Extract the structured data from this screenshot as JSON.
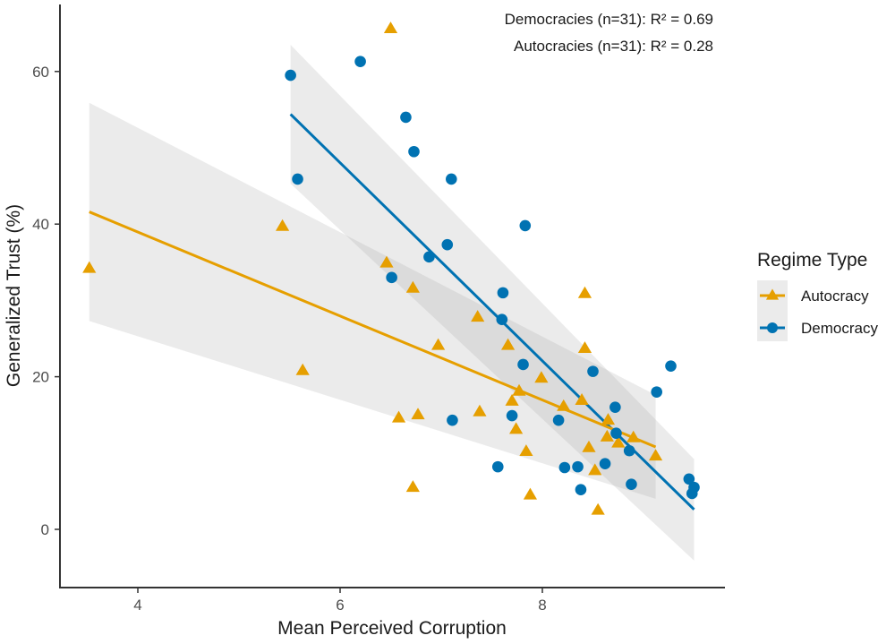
{
  "chart_data": {
    "type": "scatter",
    "title": "",
    "xlabel": "Mean Perceived Corruption",
    "ylabel": "Generalized Trust (%)",
    "xlim": [
      3.4,
      9.8
    ],
    "ylim": [
      -5,
      68
    ],
    "x_ticks": [
      4,
      6,
      8
    ],
    "x_tick_labels": [
      "4",
      "6",
      "8"
    ],
    "y_ticks": [
      0,
      20,
      40,
      60
    ],
    "y_tick_labels": [
      "0",
      "20",
      "40",
      "60"
    ],
    "grid": false,
    "legend": {
      "title": "Regime Type",
      "position": "right",
      "entries": [
        {
          "label": "Autocracy",
          "color": "#E69F00",
          "marker": "triangle"
        },
        {
          "label": "Democracy",
          "color": "#0072B2",
          "marker": "circle"
        }
      ]
    },
    "annotations": [
      "Democracies (n=31): R² = 0.69",
      "Autocracies (n=31): R² = 0.28"
    ],
    "series": [
      {
        "name": "Democracy",
        "color": "#0072B2",
        "marker": "circle",
        "points": [
          [
            5.51,
            59.5
          ],
          [
            5.58,
            45.9
          ],
          [
            6.2,
            61.3
          ],
          [
            6.65,
            54.0
          ],
          [
            6.73,
            49.5
          ],
          [
            7.1,
            45.9
          ],
          [
            7.83,
            39.8
          ],
          [
            7.06,
            37.3
          ],
          [
            6.88,
            35.7
          ],
          [
            6.51,
            33.0
          ],
          [
            7.61,
            31.0
          ],
          [
            7.6,
            27.5
          ],
          [
            7.81,
            21.6
          ],
          [
            8.5,
            20.7
          ],
          [
            9.27,
            21.4
          ],
          [
            9.13,
            18.0
          ],
          [
            7.7,
            14.9
          ],
          [
            7.11,
            14.3
          ],
          [
            8.16,
            14.3
          ],
          [
            8.72,
            16.0
          ],
          [
            8.73,
            12.6
          ],
          [
            8.86,
            10.3
          ],
          [
            8.62,
            8.6
          ],
          [
            8.35,
            8.2
          ],
          [
            8.22,
            8.1
          ],
          [
            7.56,
            8.2
          ],
          [
            8.38,
            5.2
          ],
          [
            8.88,
            5.9
          ],
          [
            9.45,
            6.6
          ],
          [
            9.5,
            5.5
          ],
          [
            9.48,
            4.7
          ]
        ],
        "fit": {
          "x": [
            5.51,
            9.5
          ],
          "y": [
            54.4,
            2.6
          ],
          "ci_upper": [
            63.5,
            9.2
          ],
          "ci_lower": [
            45.3,
            -4.1
          ]
        }
      },
      {
        "name": "Autocracy",
        "color": "#E69F00",
        "marker": "triangle",
        "points": [
          [
            6.5,
            65.6
          ],
          [
            3.52,
            34.2
          ],
          [
            5.43,
            39.7
          ],
          [
            5.63,
            20.8
          ],
          [
            6.46,
            34.9
          ],
          [
            6.72,
            31.6
          ],
          [
            7.36,
            27.8
          ],
          [
            6.97,
            24.1
          ],
          [
            7.66,
            24.1
          ],
          [
            8.42,
            23.7
          ],
          [
            8.42,
            30.9
          ],
          [
            7.99,
            19.8
          ],
          [
            7.77,
            18.1
          ],
          [
            7.7,
            16.8
          ],
          [
            8.21,
            16.1
          ],
          [
            8.39,
            16.9
          ],
          [
            8.65,
            14.3
          ],
          [
            8.64,
            12.1
          ],
          [
            8.75,
            11.3
          ],
          [
            8.9,
            12.0
          ],
          [
            9.12,
            9.6
          ],
          [
            7.74,
            13.1
          ],
          [
            8.46,
            10.7
          ],
          [
            8.52,
            7.7
          ],
          [
            7.84,
            10.2
          ],
          [
            6.58,
            14.6
          ],
          [
            6.77,
            15.0
          ],
          [
            7.38,
            15.4
          ],
          [
            6.72,
            5.5
          ],
          [
            7.88,
            4.5
          ],
          [
            8.55,
            2.5
          ]
        ],
        "fit": {
          "x": [
            3.52,
            9.12
          ],
          "y": [
            41.6,
            10.8
          ],
          "ci_upper": [
            55.9,
            17.6
          ],
          "ci_lower": [
            27.3,
            4.0
          ]
        }
      }
    ]
  }
}
